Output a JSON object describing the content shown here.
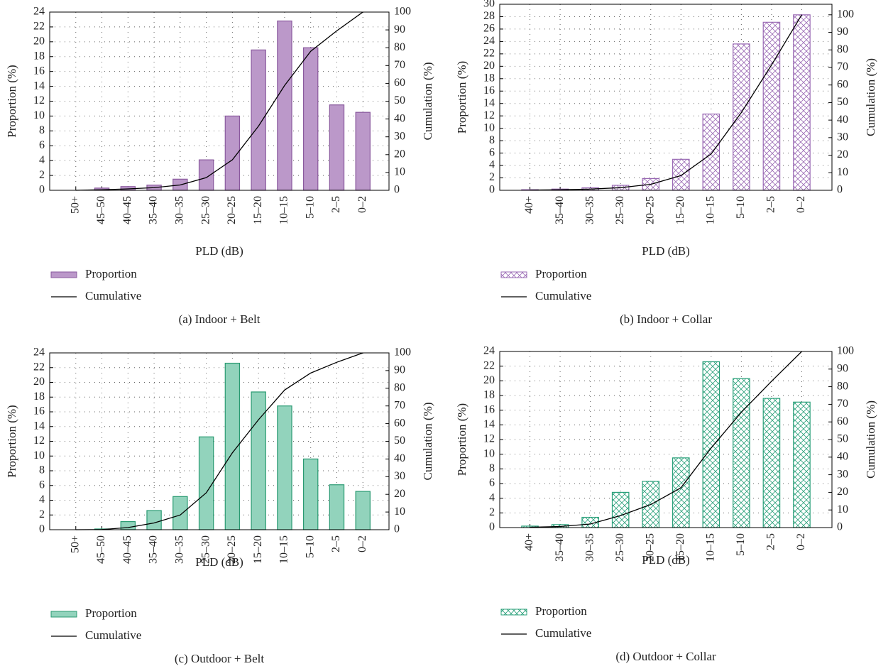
{
  "chart_data": [
    {
      "type": "bar",
      "caption": "(a)  Indoor + Belt",
      "xlabel": "PLD (dB)",
      "ylabel": "Proportion (%)",
      "y2label": "Cumulation (%)",
      "categories": [
        "50+",
        "45–50",
        "40–45",
        "35–40",
        "30–35",
        "25–30",
        "20–25",
        "15–20",
        "10–15",
        "5–10",
        "2–5",
        "0–2"
      ],
      "series": [
        {
          "name": "Proportion",
          "color": "#bb98c9",
          "edgecolor": "#8a5a9e",
          "values": [
            0,
            0.3,
            0.5,
            0.7,
            1.5,
            4.1,
            10,
            18.9,
            22.8,
            19.2,
            11.5,
            10.5
          ]
        },
        {
          "name": "Cumulative",
          "type": "line",
          "axis": "y2",
          "color": "#000000",
          "values": [
            0,
            0.3,
            0.8,
            1.5,
            3,
            7.1,
            17.1,
            36,
            58.8,
            78,
            89.5,
            100
          ]
        }
      ],
      "ylim": [
        0,
        24
      ],
      "yticks": [
        0,
        2,
        4,
        6,
        8,
        10,
        12,
        14,
        16,
        18,
        20,
        22,
        24
      ],
      "y2lim": [
        0,
        100
      ],
      "y2ticks": [
        0,
        10,
        20,
        30,
        40,
        50,
        60,
        70,
        80,
        90,
        100
      ],
      "grid": true
    },
    {
      "type": "bar",
      "caption": "(b)  Indoor + Collar",
      "xlabel": "PLD (dB)",
      "ylabel": "Proportion (%)",
      "y2label": "Cumulation (%)",
      "categories": [
        "40+",
        "35–40",
        "30–35",
        "25–30",
        "20–25",
        "15–20",
        "10–15",
        "5–10",
        "2–5",
        "0–2"
      ],
      "series": [
        {
          "name": "Proportion",
          "color": "#9a6ab4",
          "edgecolor": "#9a6ab4",
          "pattern": "crosshatch",
          "values": [
            0.1,
            0.2,
            0.4,
            0.8,
            1.9,
            5,
            12.3,
            23.6,
            27.1,
            28.3
          ]
        },
        {
          "name": "Cumulative",
          "type": "line",
          "axis": "y2",
          "color": "#000000",
          "values": [
            0.1,
            0.3,
            0.7,
            1.5,
            3.4,
            8.4,
            20.7,
            44.3,
            71.4,
            100
          ]
        }
      ],
      "ylim": [
        0,
        30
      ],
      "yticks": [
        0,
        2,
        4,
        6,
        8,
        10,
        12,
        14,
        16,
        18,
        20,
        22,
        24,
        26,
        28,
        30
      ],
      "y2lim": [
        0,
        106
      ],
      "y2ticks": [
        0,
        10,
        20,
        30,
        40,
        50,
        60,
        70,
        80,
        90,
        100
      ],
      "grid": true
    },
    {
      "type": "bar",
      "caption": "(c)  Outdoor + Belt",
      "xlabel": "PLD (dB)",
      "ylabel": "Proportion (%)",
      "y2label": "Cumulation (%)",
      "categories": [
        "50+",
        "45–50",
        "40–45",
        "35–40",
        "30–35",
        "25–30",
        "20–25",
        "15–20",
        "10–15",
        "5–10",
        "2–5",
        "0–2"
      ],
      "series": [
        {
          "name": "Proportion",
          "color": "#92d3bc",
          "edgecolor": "#2a9a72",
          "values": [
            0,
            0.1,
            1.1,
            2.6,
            4.5,
            12.6,
            22.6,
            18.7,
            16.8,
            9.6,
            6.1,
            5.2
          ]
        },
        {
          "name": "Cumulative",
          "type": "line",
          "axis": "y2",
          "color": "#000000",
          "values": [
            0,
            0.1,
            1.2,
            3.8,
            8.3,
            20.9,
            43.5,
            62.2,
            79,
            88.6,
            94.7,
            100
          ]
        }
      ],
      "ylim": [
        0,
        24
      ],
      "yticks": [
        0,
        2,
        4,
        6,
        8,
        10,
        12,
        14,
        16,
        18,
        20,
        22,
        24
      ],
      "y2lim": [
        0,
        100
      ],
      "y2ticks": [
        0,
        10,
        20,
        30,
        40,
        50,
        60,
        70,
        80,
        90,
        100
      ],
      "grid": true
    },
    {
      "type": "bar",
      "caption": "(d)  Outdoor + Collar",
      "xlabel": "PLD (dB)",
      "ylabel": "Proportion (%)",
      "y2label": "Cumulation (%)",
      "categories": [
        "40+",
        "35–40",
        "30–35",
        "25–30",
        "20–25",
        "15–20",
        "10–15",
        "5–10",
        "2–5",
        "0–2"
      ],
      "series": [
        {
          "name": "Proportion",
          "color": "#2aa07a",
          "edgecolor": "#2aa07a",
          "pattern": "crosshatch",
          "values": [
            0.2,
            0.4,
            1.4,
            4.8,
            6.3,
            9.5,
            22.6,
            20.3,
            17.6,
            17.1
          ]
        },
        {
          "name": "Cumulative",
          "type": "line",
          "axis": "y2",
          "color": "#000000",
          "values": [
            0.2,
            0.6,
            2,
            6.8,
            13.1,
            22.6,
            45.2,
            65.5,
            83.1,
            100
          ]
        }
      ],
      "ylim": [
        0,
        24
      ],
      "yticks": [
        0,
        2,
        4,
        6,
        8,
        10,
        12,
        14,
        16,
        18,
        20,
        22,
        24
      ],
      "y2lim": [
        0,
        100
      ],
      "y2ticks": [
        0,
        10,
        20,
        30,
        40,
        50,
        60,
        70,
        80,
        90,
        100
      ],
      "grid": true
    }
  ]
}
